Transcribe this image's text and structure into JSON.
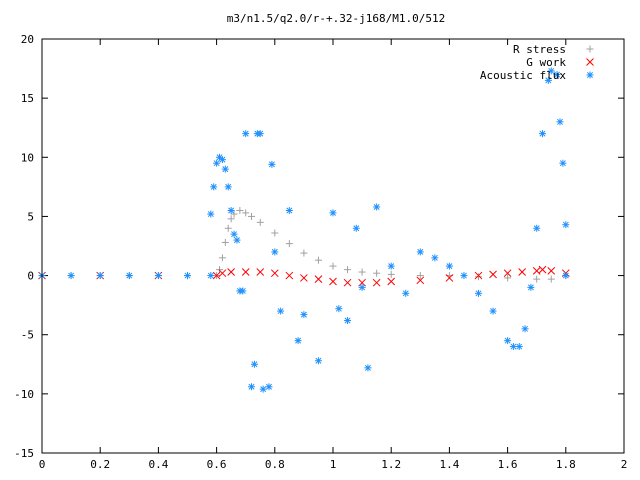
{
  "chart_data": {
    "type": "scatter",
    "title": "m3/n1.5/q2.0/r-+.32-j168/M1.0/512",
    "xlabel": "",
    "ylabel": "",
    "xlim": [
      0,
      2
    ],
    "ylim": [
      -15,
      20
    ],
    "xticks": [
      "0",
      "0.2",
      "0.4",
      "0.6",
      "0.8",
      "1",
      "1.2",
      "1.4",
      "1.6",
      "1.8",
      "2"
    ],
    "yticks": [
      "-15",
      "-10",
      "-5",
      "0",
      "5",
      "10",
      "15",
      "20"
    ],
    "grid": false,
    "legend_position": "top-right",
    "series": [
      {
        "name": "R stress",
        "marker": "+",
        "color": "#a0a0a0",
        "points": [
          [
            0.0,
            0
          ],
          [
            0.1,
            0
          ],
          [
            0.2,
            0
          ],
          [
            0.3,
            0
          ],
          [
            0.4,
            0
          ],
          [
            0.5,
            0
          ],
          [
            0.6,
            0
          ],
          [
            0.61,
            0.5
          ],
          [
            0.62,
            1.5
          ],
          [
            0.63,
            2.8
          ],
          [
            0.64,
            4.0
          ],
          [
            0.65,
            4.8
          ],
          [
            0.66,
            5.2
          ],
          [
            0.68,
            5.5
          ],
          [
            0.7,
            5.3
          ],
          [
            0.72,
            5.0
          ],
          [
            0.75,
            4.5
          ],
          [
            0.8,
            3.6
          ],
          [
            0.85,
            2.7
          ],
          [
            0.9,
            1.9
          ],
          [
            0.95,
            1.3
          ],
          [
            1.0,
            0.8
          ],
          [
            1.05,
            0.5
          ],
          [
            1.1,
            0.3
          ],
          [
            1.15,
            0.2
          ],
          [
            1.2,
            0.1
          ],
          [
            1.3,
            0.0
          ],
          [
            1.4,
            0.0
          ],
          [
            1.5,
            -0.1
          ],
          [
            1.6,
            -0.2
          ],
          [
            1.7,
            -0.3
          ],
          [
            1.75,
            -0.3
          ],
          [
            1.8,
            0.0
          ]
        ]
      },
      {
        "name": "G work",
        "marker": "x",
        "color": "#ff0000",
        "points": [
          [
            0.0,
            0
          ],
          [
            0.2,
            0
          ],
          [
            0.4,
            0
          ],
          [
            0.6,
            0
          ],
          [
            0.62,
            0.2
          ],
          [
            0.65,
            0.3
          ],
          [
            0.7,
            0.3
          ],
          [
            0.75,
            0.3
          ],
          [
            0.8,
            0.2
          ],
          [
            0.85,
            0.0
          ],
          [
            0.9,
            -0.2
          ],
          [
            0.95,
            -0.3
          ],
          [
            1.0,
            -0.5
          ],
          [
            1.05,
            -0.6
          ],
          [
            1.1,
            -0.6
          ],
          [
            1.15,
            -0.6
          ],
          [
            1.2,
            -0.5
          ],
          [
            1.3,
            -0.4
          ],
          [
            1.4,
            -0.2
          ],
          [
            1.5,
            0.0
          ],
          [
            1.55,
            0.1
          ],
          [
            1.6,
            0.2
          ],
          [
            1.65,
            0.3
          ],
          [
            1.7,
            0.4
          ],
          [
            1.72,
            0.5
          ],
          [
            1.75,
            0.4
          ],
          [
            1.8,
            0.2
          ]
        ]
      },
      {
        "name": "Acoustic flux",
        "marker": "*",
        "color": "#1e90ff",
        "points": [
          [
            0.0,
            0
          ],
          [
            0.1,
            0
          ],
          [
            0.2,
            0
          ],
          [
            0.3,
            0
          ],
          [
            0.4,
            0
          ],
          [
            0.5,
            0
          ],
          [
            0.58,
            0
          ],
          [
            0.58,
            5.2
          ],
          [
            0.59,
            7.5
          ],
          [
            0.6,
            9.5
          ],
          [
            0.61,
            10.0
          ],
          [
            0.62,
            9.8
          ],
          [
            0.63,
            9.0
          ],
          [
            0.64,
            7.5
          ],
          [
            0.65,
            5.5
          ],
          [
            0.66,
            3.5
          ],
          [
            0.67,
            3.0
          ],
          [
            0.68,
            -1.3
          ],
          [
            0.69,
            -1.3
          ],
          [
            0.7,
            12.0
          ],
          [
            0.72,
            -9.4
          ],
          [
            0.73,
            -7.5
          ],
          [
            0.74,
            12.0
          ],
          [
            0.75,
            12.0
          ],
          [
            0.76,
            -9.6
          ],
          [
            0.78,
            -9.4
          ],
          [
            0.79,
            9.4
          ],
          [
            0.8,
            2.0
          ],
          [
            0.82,
            -3.0
          ],
          [
            0.85,
            5.5
          ],
          [
            0.88,
            -5.5
          ],
          [
            0.9,
            -3.3
          ],
          [
            0.95,
            -7.2
          ],
          [
            1.0,
            5.3
          ],
          [
            1.02,
            -2.8
          ],
          [
            1.05,
            -3.8
          ],
          [
            1.08,
            4.0
          ],
          [
            1.1,
            -1.0
          ],
          [
            1.12,
            -7.8
          ],
          [
            1.15,
            5.8
          ],
          [
            1.2,
            0.8
          ],
          [
            1.25,
            -1.5
          ],
          [
            1.3,
            2.0
          ],
          [
            1.35,
            1.5
          ],
          [
            1.4,
            0.8
          ],
          [
            1.45,
            0.0
          ],
          [
            1.5,
            -1.5
          ],
          [
            1.55,
            -3.0
          ],
          [
            1.6,
            -5.5
          ],
          [
            1.62,
            -6.0
          ],
          [
            1.64,
            -6.0
          ],
          [
            1.66,
            -4.5
          ],
          [
            1.68,
            -1.0
          ],
          [
            1.7,
            4.0
          ],
          [
            1.72,
            12.0
          ],
          [
            1.74,
            16.5
          ],
          [
            1.75,
            17.3
          ],
          [
            1.77,
            17.0
          ],
          [
            1.78,
            13.0
          ],
          [
            1.79,
            9.5
          ],
          [
            1.8,
            4.3
          ],
          [
            1.8,
            0
          ]
        ]
      }
    ]
  }
}
